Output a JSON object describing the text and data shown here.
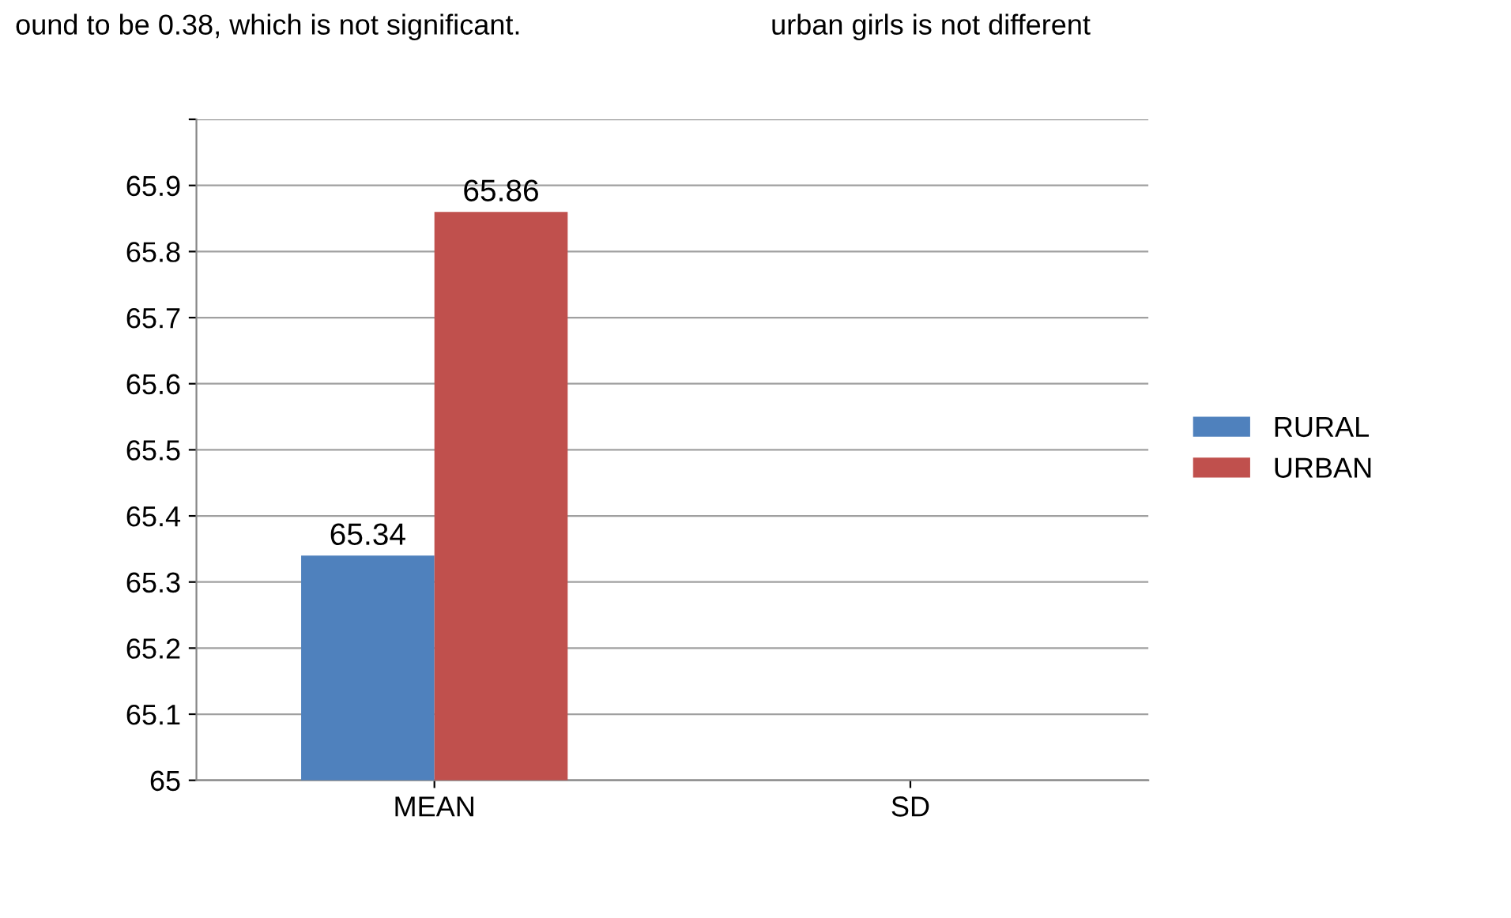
{
  "chart_data": {
    "type": "bar",
    "categories": [
      "MEAN",
      "SD"
    ],
    "series": [
      {
        "name": "RURAL",
        "color": "#4f81bd",
        "values": [
          65.34,
          null
        ]
      },
      {
        "name": "URBAN",
        "color": "#c0504d",
        "values": [
          65.86,
          null
        ]
      }
    ],
    "ylim": [
      65,
      66
    ],
    "yticks": [
      65,
      65.1,
      65.2,
      65.3,
      65.4,
      65.5,
      65.6,
      65.7,
      65.8,
      65.9,
      {
        "value": 66,
        "label": null
      }
    ],
    "grid": "y",
    "legend": "right",
    "data_labels": true,
    "annotations": [
      "ound to be 0.38, which is not significant.",
      "urban girls is not different"
    ]
  }
}
